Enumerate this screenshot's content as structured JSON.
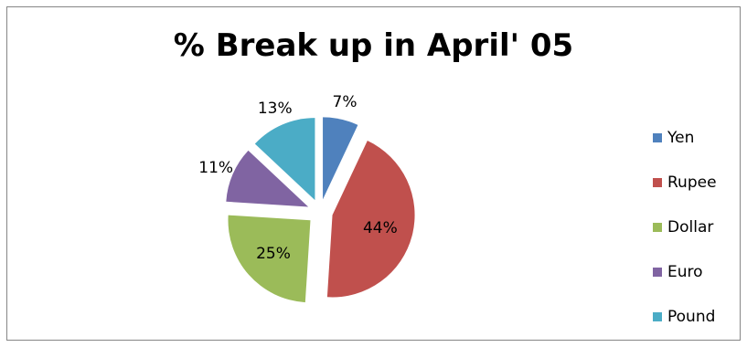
{
  "chart_data": {
    "type": "pie",
    "title": "% Break up in April' 05",
    "categories": [
      "Yen",
      "Rupee",
      "Dollar",
      "Euro",
      "Pound"
    ],
    "values": [
      7,
      44,
      25,
      11,
      13
    ],
    "data_labels": [
      "7%",
      "44%",
      "25%",
      "11%",
      "13%"
    ],
    "colors": [
      "#4F81BD",
      "#C0504D",
      "#9BBB59",
      "#8064A2",
      "#4BACC6"
    ],
    "exploded": true,
    "legend": "right"
  }
}
